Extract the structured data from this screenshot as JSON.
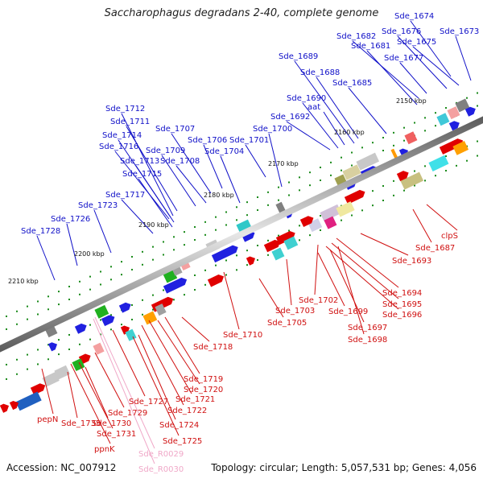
{
  "title": "Saccharophagus degradans 2-40, complete genome",
  "footer": {
    "accession": "Accession: NC_007912",
    "info": "Topology: circular; Length: 5,057,531 bp; Genes: 4,056"
  },
  "colors": {
    "top_labels": "#1010c8",
    "bottom_labels": "#d01010",
    "rna_label": "#f0a8c8",
    "backbone": "#8c8c8c",
    "tick": "#1a8a1a"
  },
  "ruler_labels": [
    "2150 kbp",
    "2160 kbp",
    "2170 kbp",
    "2180 kbp",
    "2190 kbp",
    "2200 kbp",
    "2210 kbp"
  ],
  "top_labels": [
    "Sde_1674",
    "Sde_1673",
    "Sde_1676",
    "Sde_1675",
    "Sde_1682",
    "Sde_1681",
    "Sde_1677",
    "Sde_1689",
    "Sde_1688",
    "Sde_1685",
    "Sde_1690",
    "aat",
    "Sde_1692",
    "Sde_1712",
    "Sde_1711",
    "Sde_1707",
    "Sde_1714",
    "Sde_1706",
    "Sde_1700",
    "Sde_1716",
    "Sde_1709",
    "Sde_1701",
    "Sde_1704",
    "Sde_1713",
    "Sde_1708",
    "Sde_1715",
    "Sde_1717",
    "Sde_1723",
    "Sde_1726",
    "Sde_1728"
  ],
  "bottom_labels": [
    "clpS",
    "Sde_1687",
    "Sde_1693",
    "Sde_1694",
    "Sde_1695",
    "Sde_1696",
    "Sde_1702",
    "Sde_1699",
    "Sde_1697",
    "Sde_1698",
    "Sde_1703",
    "Sde_1705",
    "Sde_1710",
    "Sde_1718",
    "Sde_1719",
    "Sde_1720",
    "Sde_1721",
    "Sde_1722",
    "Sde_1727",
    "Sde_1729",
    "Sde_1724",
    "Sde_1725",
    "pepN",
    "Sde_1735",
    "Sde_1730",
    "Sde_1731",
    "ppnK"
  ],
  "rna_labels": [
    "Sde_R0029",
    "Sde_R0030"
  ]
}
